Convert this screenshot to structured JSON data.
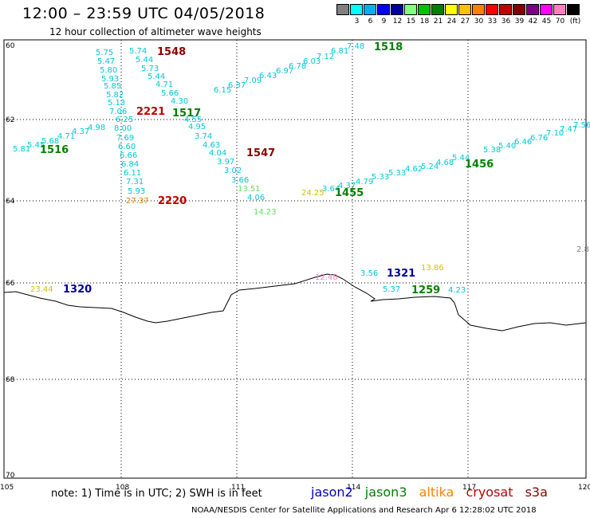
{
  "header": {
    "title": "12:00 – 23:59 UTC 04/05/2018",
    "subtitle": "12 hour collection of altimeter wave heights"
  },
  "scale": {
    "colors": [
      "#808080",
      "#00ffff",
      "#00b0f0",
      "#0000ff",
      "#0000a0",
      "#80ff80",
      "#00c000",
      "#008000",
      "#ffff00",
      "#ffc000",
      "#ff8000",
      "#ff0000",
      "#c00000",
      "#800000",
      "#800080",
      "#ff00ff",
      "#ff80c0",
      "#000000"
    ],
    "labels": [
      "3",
      "6",
      "9",
      "12",
      "15",
      "18",
      "21",
      "24",
      "27",
      "30",
      "33",
      "36",
      "39",
      "42",
      "45",
      "70"
    ],
    "unit": "(ft)"
  },
  "axes": {
    "x_ticks": [
      "105",
      "108",
      "111",
      "114",
      "117",
      "120"
    ],
    "y_ticks": [
      "60",
      "62",
      "64",
      "66",
      "68",
      "70"
    ]
  },
  "tracks": {
    "cyan_text": [
      "5.75",
      "5.47",
      "5.80",
      "5.93",
      "5.85",
      "5.82",
      "5.13",
      "7.06",
      "6.25",
      "8.00",
      "7.69",
      "6.60",
      "6.66",
      "6.84",
      "6.11",
      "7.31",
      "5.93",
      "5.74",
      "5.44",
      "5.73",
      "5.44",
      "4.71",
      "5.66",
      "4.30",
      "4.55",
      "4.95",
      "3.74",
      "4.63",
      "4.04",
      "3.97",
      "3.02",
      "3.66",
      "4.06",
      "5.81",
      "5.45",
      "5.68",
      "4.71",
      "4.37",
      "4.98",
      "6.15",
      "6.37",
      "7.09",
      "6.43",
      "6.97",
      "6.78",
      "6.03",
      "7.12",
      "6.81",
      "7.48",
      "3.64",
      "4.37",
      "4.79",
      "5.33",
      "5.33",
      "4.62",
      "5.24",
      "4.68",
      "5.44",
      "5.38",
      "5.40",
      "6.46",
      "6.76",
      "7.10",
      "7.47",
      "7.56",
      "3.56",
      "5.37",
      "4.23",
      "2.8"
    ],
    "labels": [
      {
        "text": "1548",
        "color": "#8b0000"
      },
      {
        "text": "1518",
        "color": "#008000"
      },
      {
        "text": "2221",
        "color": "#c00000"
      },
      {
        "text": "1517",
        "color": "#008000"
      },
      {
        "text": "1516",
        "color": "#008000"
      },
      {
        "text": "1547",
        "color": "#8b0000"
      },
      {
        "text": "1456",
        "color": "#008000"
      },
      {
        "text": "1455",
        "color": "#008000"
      },
      {
        "text": "2220",
        "color": "#c00000"
      },
      {
        "text": "1320",
        "color": "#0000a0"
      },
      {
        "text": "1321",
        "color": "#0000a0"
      },
      {
        "text": "1259",
        "color": "#008000"
      }
    ],
    "other_values": [
      {
        "text": "27.37",
        "color": "#e08000"
      },
      {
        "text": "24.25",
        "color": "#d4c000"
      },
      {
        "text": "14.23",
        "color": "#60e060"
      },
      {
        "text": "13.51",
        "color": "#60e060"
      },
      {
        "text": "23.44",
        "color": "#d4c000"
      },
      {
        "text": "12.48",
        "color": "#ff80c0"
      },
      {
        "text": "13.86",
        "color": "#d4c000"
      }
    ]
  },
  "footer": {
    "note": "note: 1) Time is in UTC; 2) SWH is in feet",
    "satellites": [
      {
        "name": "jason2",
        "color": "#0000c0"
      },
      {
        "name": "jason3",
        "color": "#008000"
      },
      {
        "name": "altika",
        "color": "#ff8000"
      },
      {
        "name": "cryosat",
        "color": "#c00000"
      },
      {
        "name": "s3a",
        "color": "#8b0000"
      }
    ],
    "credit": "NOAA/NESDIS Center for Satellite Applications and Research   Apr  6 12:28:02 UTC 2018"
  }
}
